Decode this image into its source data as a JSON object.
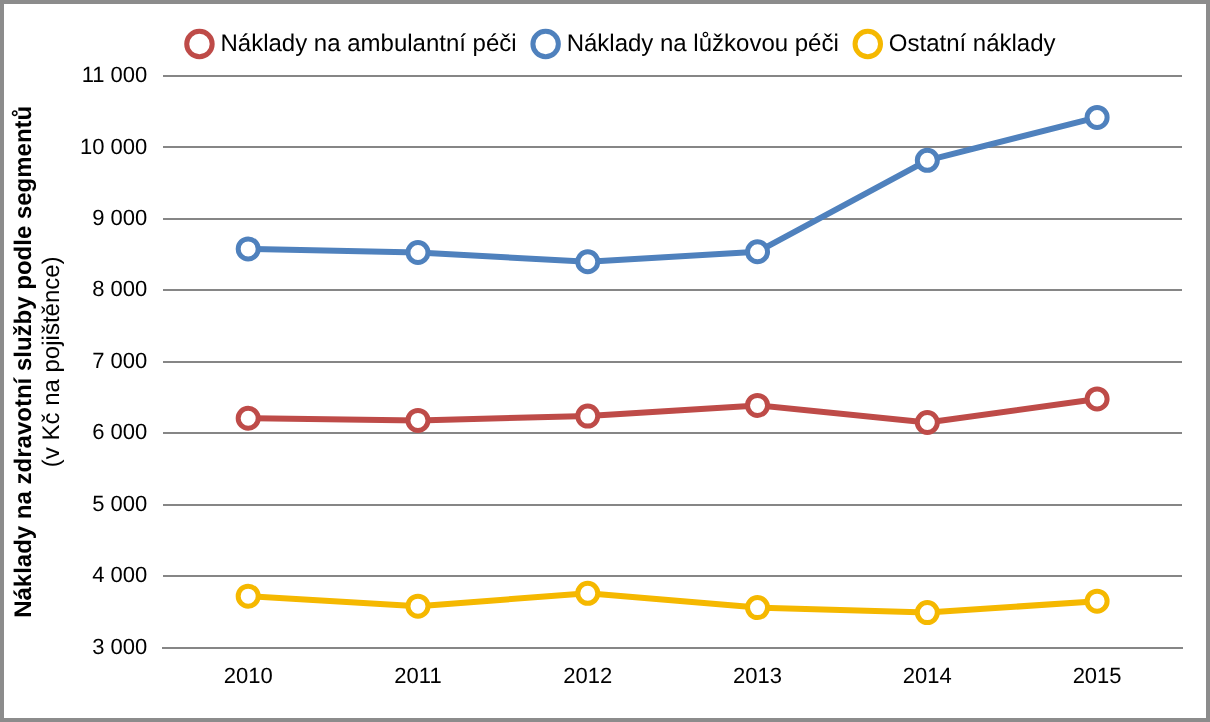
{
  "chart_data": {
    "type": "line",
    "ylabel": "Náklady na zdravotní služby podle segmentů\n(v Kč na pojištěnce)",
    "categories": [
      "2010",
      "2011",
      "2012",
      "2013",
      "2014",
      "2015"
    ],
    "series": [
      {
        "name": "Náklady na ambulantní péči",
        "color": "#be4b48",
        "values": [
          6210,
          6180,
          6240,
          6390,
          6150,
          6480
        ]
      },
      {
        "name": "Náklady na lůžkovou péči",
        "color": "#4f81bd",
        "values": [
          8580,
          8530,
          8400,
          8540,
          9820,
          10420
        ]
      },
      {
        "name": "Ostatní náklady",
        "color": "#f5b800",
        "values": [
          3720,
          3580,
          3760,
          3560,
          3490,
          3650
        ]
      }
    ],
    "ylim": [
      3000,
      11000
    ],
    "yticks": [
      {
        "value": 3000,
        "label": "3 000"
      },
      {
        "value": 4000,
        "label": "4 000"
      },
      {
        "value": 5000,
        "label": "5 000"
      },
      {
        "value": 6000,
        "label": "6 000"
      },
      {
        "value": 7000,
        "label": "7 000"
      },
      {
        "value": 8000,
        "label": "8 000"
      },
      {
        "value": 9000,
        "label": "9 000"
      },
      {
        "value": 10000,
        "label": "10 000"
      },
      {
        "value": 11000,
        "label": "11 000"
      }
    ],
    "grid": "y",
    "legend": "top",
    "marker": "circle",
    "line_style": "solid"
  }
}
